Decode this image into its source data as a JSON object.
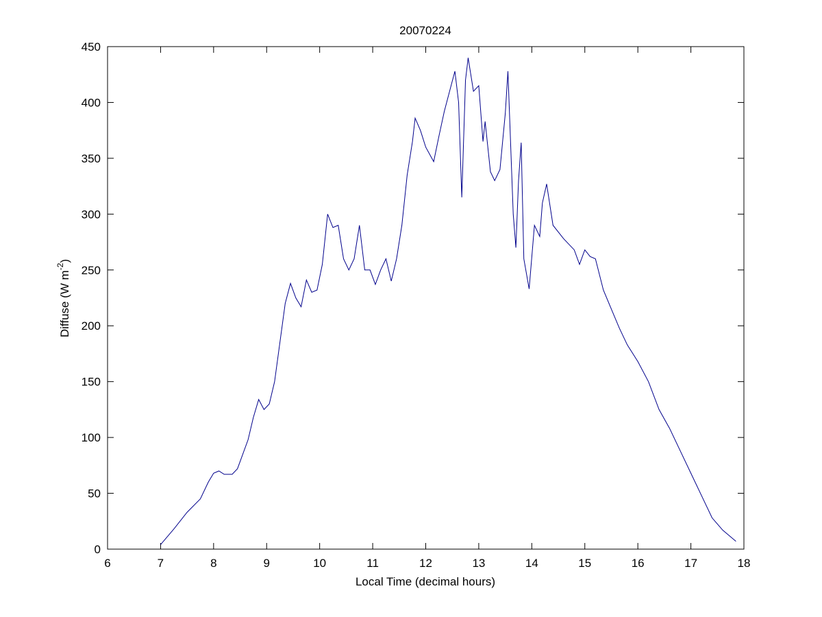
{
  "chart_data": {
    "type": "line",
    "title": "20070224",
    "x_label": "Local Time (decimal hours)",
    "y_label": [
      "Diffuse (W m",
      "-2",
      ")"
    ],
    "x": [
      7.0,
      7.25,
      7.5,
      7.75,
      7.9,
      8.0,
      8.1,
      8.2,
      8.35,
      8.45,
      8.55,
      8.65,
      8.75,
      8.85,
      8.95,
      9.05,
      9.15,
      9.25,
      9.35,
      9.45,
      9.55,
      9.65,
      9.75,
      9.85,
      9.95,
      10.05,
      10.15,
      10.25,
      10.35,
      10.45,
      10.55,
      10.65,
      10.75,
      10.85,
      10.95,
      11.05,
      11.15,
      11.25,
      11.35,
      11.45,
      11.55,
      11.65,
      11.75,
      11.8,
      11.9,
      12.0,
      12.15,
      12.25,
      12.35,
      12.45,
      12.55,
      12.62,
      12.68,
      12.75,
      12.8,
      12.9,
      13.0,
      13.08,
      13.12,
      13.22,
      13.3,
      13.4,
      13.5,
      13.55,
      13.65,
      13.7,
      13.75,
      13.8,
      13.85,
      13.95,
      14.05,
      14.15,
      14.2,
      14.28,
      14.4,
      14.6,
      14.8,
      14.9,
      15.0,
      15.1,
      15.2,
      15.35,
      15.5,
      15.65,
      15.8,
      16.0,
      16.2,
      16.4,
      16.6,
      16.8,
      17.0,
      17.2,
      17.4,
      17.6,
      17.85
    ],
    "values": [
      4,
      18,
      33,
      45,
      60,
      68,
      70,
      67,
      67,
      72,
      85,
      98,
      118,
      134,
      125,
      130,
      150,
      185,
      220,
      238,
      225,
      217,
      241,
      230,
      232,
      255,
      300,
      288,
      290,
      260,
      250,
      260,
      290,
      250,
      250,
      237,
      250,
      260,
      240,
      260,
      290,
      335,
      365,
      386,
      375,
      360,
      347,
      370,
      392,
      410,
      428,
      400,
      315,
      420,
      440,
      410,
      415,
      365,
      383,
      338,
      330,
      340,
      390,
      428,
      300,
      270,
      330,
      364,
      260,
      233,
      290,
      280,
      310,
      327,
      290,
      278,
      268,
      255,
      268,
      262,
      260,
      232,
      215,
      198,
      183,
      168,
      150,
      125,
      108,
      88,
      68,
      48,
      28,
      17,
      7
    ],
    "color": "#00008b",
    "xlim": [
      6,
      18
    ],
    "xticks": [
      6,
      7,
      8,
      9,
      10,
      11,
      12,
      13,
      14,
      15,
      16,
      17,
      18
    ],
    "ylim": [
      0,
      450
    ],
    "yticks": [
      0,
      50,
      100,
      150,
      200,
      250,
      300,
      350,
      400,
      450
    ]
  }
}
